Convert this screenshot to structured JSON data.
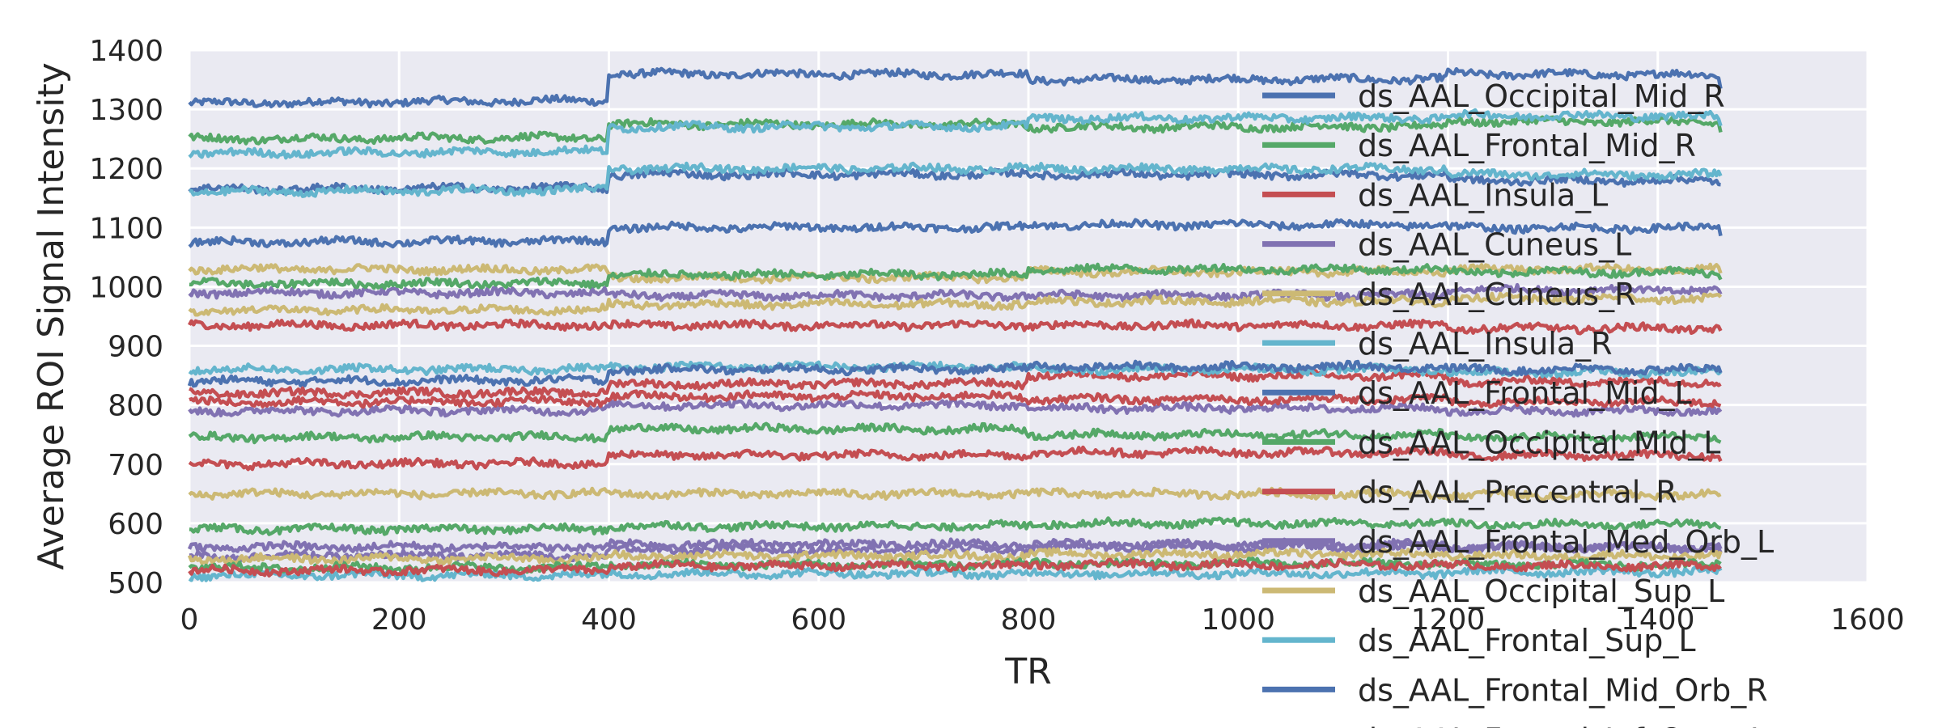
{
  "chart_data": {
    "type": "line",
    "title": "",
    "xlabel": "TR",
    "ylabel": "Average ROI Signal Intensity",
    "xlim": [
      0,
      1600
    ],
    "ylim": [
      500,
      1400
    ],
    "xticks": [
      "0",
      "200",
      "400",
      "600",
      "800",
      "1000",
      "1200",
      "1400",
      "1600"
    ],
    "yticks": [
      "500",
      "600",
      "700",
      "800",
      "900",
      "1000",
      "1100",
      "1200",
      "1300",
      "1400"
    ],
    "grid": true,
    "legend_position": "right, overflowing the plot",
    "series": [
      {
        "name": "ds_AAL_Occipital_Mid_R",
        "color": "#4C72B0",
        "x": [
          0,
          400,
          800,
          1200,
          1460
        ],
        "y": [
          1310,
          1360,
          1350,
          1360,
          1340
        ]
      },
      {
        "name": "ds_AAL_Frontal_Mid_R",
        "color": "#55A868",
        "x": [
          0,
          400,
          800,
          1200,
          1460
        ],
        "y": [
          1250,
          1275,
          1270,
          1280,
          1265
        ]
      },
      {
        "name": "ds_AAL_Insula_L",
        "color": "#C44E52",
        "x": [
          0,
          400,
          800,
          1200,
          1460
        ],
        "y": [
          935,
          935,
          935,
          930,
          925
        ]
      },
      {
        "name": "ds_AAL_Cuneus_L",
        "color": "#8172B2",
        "x": [
          0,
          400,
          800,
          1200,
          1460
        ],
        "y": [
          990,
          985,
          985,
          995,
          990
        ]
      },
      {
        "name": "ds_AAL_Cuneus_R",
        "color": "#CCB974",
        "x": [
          0,
          400,
          800,
          1200,
          1460
        ],
        "y": [
          1030,
          1015,
          1025,
          1030,
          1020
        ]
      },
      {
        "name": "ds_AAL_Insula_R",
        "color": "#64B5CD",
        "x": [
          0,
          400,
          800,
          1200,
          1460
        ],
        "y": [
          1225,
          1270,
          1285,
          1290,
          1270
        ]
      },
      {
        "name": "ds_AAL_Frontal_Mid_L",
        "color": "#4C72B0",
        "x": [
          0,
          400,
          800,
          1200,
          1460
        ],
        "y": [
          1165,
          1190,
          1190,
          1180,
          1170
        ]
      },
      {
        "name": "ds_AAL_Occipital_Mid_L",
        "color": "#55A868",
        "x": [
          0,
          400,
          800,
          1200,
          1460
        ],
        "y": [
          745,
          760,
          750,
          745,
          745
        ]
      },
      {
        "name": "ds_AAL_Precentral_R",
        "color": "#C44E52",
        "x": [
          0,
          400,
          800,
          1200,
          1460
        ],
        "y": [
          820,
          835,
          850,
          840,
          835
        ]
      },
      {
        "name": "ds_AAL_Frontal_Med_Orb_L",
        "color": "#8172B2",
        "x": [
          0,
          400,
          800,
          1200,
          1460
        ],
        "y": [
          790,
          800,
          795,
          790,
          785
        ]
      },
      {
        "name": "ds_AAL_Occipital_Sup_L",
        "color": "#CCB974",
        "x": [
          0,
          400,
          800,
          1200,
          1460
        ],
        "y": [
          650,
          650,
          650,
          648,
          648
        ]
      },
      {
        "name": "ds_AAL_Frontal_Sup_L",
        "color": "#64B5CD",
        "x": [
          0,
          400,
          800,
          1200,
          1460
        ],
        "y": [
          1160,
          1200,
          1200,
          1190,
          1180
        ]
      },
      {
        "name": "ds_AAL_Frontal_Mid_Orb_R",
        "color": "#4C72B0",
        "x": [
          0,
          400,
          800,
          1200,
          1460
        ],
        "y": [
          1075,
          1100,
          1105,
          1100,
          1090
        ]
      },
      {
        "name": "ds_AAL_Frontal_Inf_Oper_L",
        "color": "#55A868",
        "x": [
          0,
          400,
          800,
          1200,
          1460
        ],
        "y": [
          1005,
          1020,
          1030,
          1025,
          1020
        ]
      },
      {
        "name": "",
        "color": "#C44E52",
        "x": [
          0,
          400,
          800,
          1200,
          1460
        ],
        "y": [
          700,
          715,
          720,
          715,
          712
        ]
      },
      {
        "name": "",
        "color": "#8172B2",
        "x": [
          0,
          400,
          800,
          1200,
          1460
        ],
        "y": [
          560,
          565,
          565,
          560,
          560
        ]
      },
      {
        "name": "",
        "color": "#CCB974",
        "x": [
          0,
          400,
          800,
          1200,
          1460
        ],
        "y": [
          960,
          970,
          975,
          980,
          980
        ]
      },
      {
        "name": "",
        "color": "#64B5CD",
        "x": [
          0,
          400,
          800,
          1200,
          1460
        ],
        "y": [
          860,
          865,
          860,
          855,
          855
        ]
      },
      {
        "name": "",
        "color": "#4C72B0",
        "x": [
          0,
          400,
          800,
          1200,
          1460
        ],
        "y": [
          840,
          860,
          865,
          860,
          860
        ]
      },
      {
        "name": "",
        "color": "#55A868",
        "x": [
          0,
          400,
          800,
          1200,
          1460
        ],
        "y": [
          590,
          595,
          600,
          598,
          598
        ]
      },
      {
        "name": "",
        "color": "#C44E52",
        "x": [
          0,
          400,
          800,
          1200,
          1460
        ],
        "y": [
          805,
          815,
          810,
          805,
          805
        ]
      },
      {
        "name": "",
        "color": "#8172B2",
        "x": [
          0,
          400,
          800,
          1200,
          1460
        ],
        "y": [
          545,
          555,
          560,
          560,
          555
        ]
      },
      {
        "name": "",
        "color": "#CCB974",
        "x": [
          0,
          400,
          800,
          1200,
          1460
        ],
        "y": [
          540,
          545,
          548,
          545,
          545
        ]
      },
      {
        "name": "",
        "color": "#64B5CD",
        "x": [
          0,
          400,
          800,
          1200,
          1460
        ],
        "y": [
          512,
          515,
          515,
          518,
          518
        ]
      },
      {
        "name": "",
        "color": "#55A868",
        "x": [
          0,
          400,
          800,
          1200,
          1460
        ],
        "y": [
          525,
          530,
          532,
          530,
          530
        ]
      },
      {
        "name": "",
        "color": "#C44E52",
        "x": [
          0,
          400,
          800,
          1200,
          1460
        ],
        "y": [
          520,
          528,
          530,
          528,
          528
        ]
      }
    ]
  }
}
